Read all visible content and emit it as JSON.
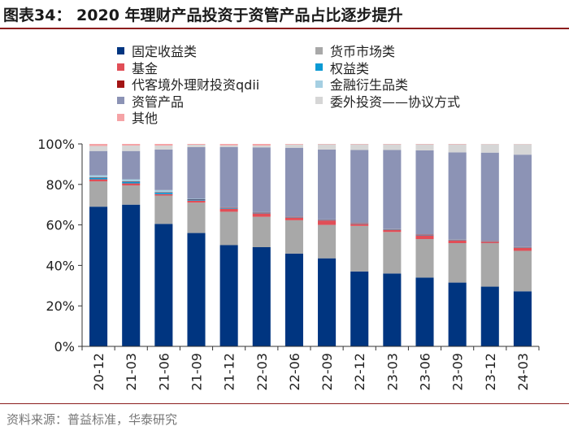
{
  "title": "图表34：  2020 年理财产品投资于资管产品占比逐步提升",
  "source": "资料来源：普益标准，华泰研究",
  "colors": {
    "fixed_income": "#003580",
    "equity": "#0b9ad4",
    "asset_mgmt": "#8c93b5",
    "other": "#f5a3a6",
    "currency": "#a8a8a8",
    "fund": "#e14e57",
    "qdii": "#a31515",
    "derivatives": "#a5cfe2",
    "agreement": "#d6d6d6"
  },
  "legend": [
    {
      "key": "fixed_income",
      "label": "固定收益类"
    },
    {
      "key": "currency",
      "label": "货币市场类"
    },
    {
      "key": "fund",
      "label": "基金"
    },
    {
      "key": "equity",
      "label": "权益类"
    },
    {
      "key": "qdii",
      "label": "代客境外理财投资qdii"
    },
    {
      "key": "derivatives",
      "label": "金融衍生品类"
    },
    {
      "key": "asset_mgmt",
      "label": "资管产品"
    },
    {
      "key": "agreement",
      "label": "委外投资——协议方式"
    },
    {
      "key": "other",
      "label": "其他"
    }
  ],
  "chart_data": {
    "type": "bar",
    "stacked": true,
    "title": "2020 年理财产品投资于资管产品占比逐步提升",
    "xlabel": "",
    "ylabel": "",
    "ylim": [
      0,
      100
    ],
    "yticks": [
      "0%",
      "20%",
      "40%",
      "60%",
      "80%",
      "100%"
    ],
    "categories": [
      "20-12",
      "21-03",
      "21-06",
      "21-09",
      "21-12",
      "22-03",
      "22-06",
      "22-09",
      "22-12",
      "23-03",
      "23-06",
      "23-09",
      "23-12",
      "24-03"
    ],
    "series": [
      {
        "key": "fixed_income",
        "name": "固定收益类",
        "values": [
          69.0,
          70.0,
          60.5,
          56.0,
          50.0,
          49.0,
          45.8,
          43.5,
          37.0,
          36.0,
          34.0,
          31.5,
          29.5,
          27.2
        ]
      },
      {
        "key": "currency",
        "name": "货币市场类",
        "values": [
          12.5,
          9.5,
          14.0,
          15.0,
          16.5,
          15.0,
          16.5,
          16.5,
          22.5,
          20.5,
          19.0,
          19.5,
          21.5,
          20.0
        ]
      },
      {
        "key": "fund",
        "name": "基金",
        "values": [
          1.0,
          1.0,
          0.7,
          1.0,
          1.5,
          1.7,
          1.3,
          2.2,
          1.0,
          1.0,
          1.8,
          1.3,
          0.7,
          1.5
        ]
      },
      {
        "key": "equity",
        "name": "权益类",
        "values": [
          0.8,
          0.8,
          0.8,
          0.5,
          0.3,
          0.3,
          0.2,
          0.2,
          0.2,
          0.2,
          0.2,
          0.2,
          0.2,
          0.2
        ]
      },
      {
        "key": "qdii",
        "name": "代客境外理财投资qdii",
        "values": [
          0.2,
          0.2,
          0.2,
          0.2,
          0.2,
          0.2,
          0.2,
          0.2,
          0.2,
          0.2,
          0.2,
          0.2,
          0.2,
          0.2
        ]
      },
      {
        "key": "derivatives",
        "name": "金融衍生品类",
        "values": [
          1.0,
          1.0,
          1.0,
          0.2,
          0.2,
          0.1,
          0.1,
          0.1,
          0.1,
          0.1,
          0.1,
          0.1,
          0.1,
          0.1
        ]
      },
      {
        "key": "asset_mgmt",
        "name": "资管产品",
        "values": [
          12.0,
          14.0,
          20.0,
          25.5,
          29.8,
          32.0,
          34.0,
          34.5,
          36.0,
          39.0,
          41.5,
          43.0,
          43.5,
          45.5
        ]
      },
      {
        "key": "agreement",
        "name": "委外投资——协议方式",
        "values": [
          2.5,
          2.7,
          2.0,
          1.2,
          0.8,
          0.9,
          1.6,
          2.6,
          2.8,
          2.8,
          3.0,
          4.0,
          4.2,
          5.2
        ]
      },
      {
        "key": "other",
        "name": "其他",
        "values": [
          1.0,
          0.8,
          0.8,
          0.4,
          0.7,
          0.8,
          0.3,
          0.2,
          0.2,
          0.2,
          0.2,
          0.2,
          0.1,
          0.1
        ]
      }
    ]
  }
}
